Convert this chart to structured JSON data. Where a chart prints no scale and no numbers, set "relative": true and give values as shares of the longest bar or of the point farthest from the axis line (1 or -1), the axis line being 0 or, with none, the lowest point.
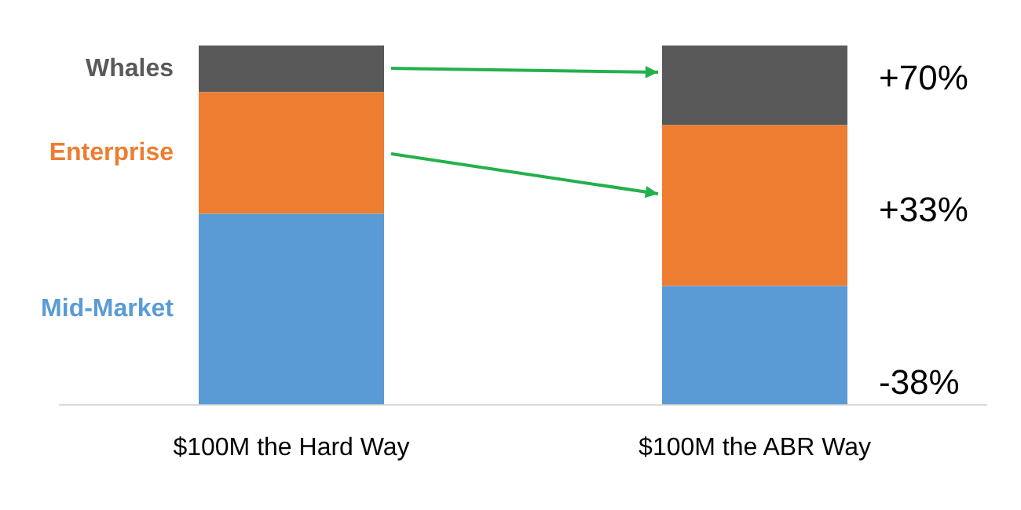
{
  "chart_data": {
    "type": "bar",
    "stacked": true,
    "relative": true,
    "categories": [
      "$100M the Hard Way",
      "$100M the ABR Way"
    ],
    "series": [
      {
        "name": "Mid-Market",
        "color": "#5b9bd5",
        "values": [
          0.531,
          0.33
        ]
      },
      {
        "name": "Enterprise",
        "color": "#ed7d31",
        "values": [
          0.339,
          0.448
        ]
      },
      {
        "name": "Whales",
        "color": "#595959",
        "values": [
          0.13,
          0.222
        ]
      }
    ],
    "annotations": [
      "+70%",
      "+33%",
      "-38%"
    ],
    "legend": false,
    "grid": false
  }
}
